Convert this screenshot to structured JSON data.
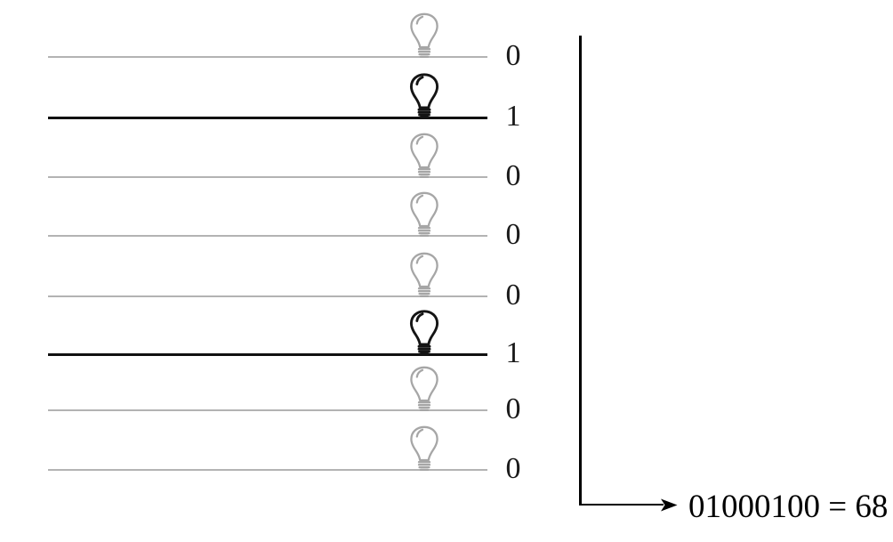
{
  "diagram": {
    "bits": [
      {
        "value": "0",
        "bulb": "off"
      },
      {
        "value": "1",
        "bulb": "on"
      },
      {
        "value": "0",
        "bulb": "off"
      },
      {
        "value": "0",
        "bulb": "off"
      },
      {
        "value": "0",
        "bulb": "off"
      },
      {
        "value": "1",
        "bulb": "on"
      },
      {
        "value": "0",
        "bulb": "off"
      },
      {
        "value": "0",
        "bulb": "off"
      }
    ],
    "result_label": "01000100 = 68",
    "icons": {
      "bulb": "lightbulb-icon",
      "arrow": "arrowhead-right-icon"
    },
    "colors": {
      "bulb_on": "#141414",
      "bulb_off": "#a6a6a6",
      "line_on": "#111111",
      "line_off": "#b3b3b3",
      "arrow": "#000000"
    }
  }
}
